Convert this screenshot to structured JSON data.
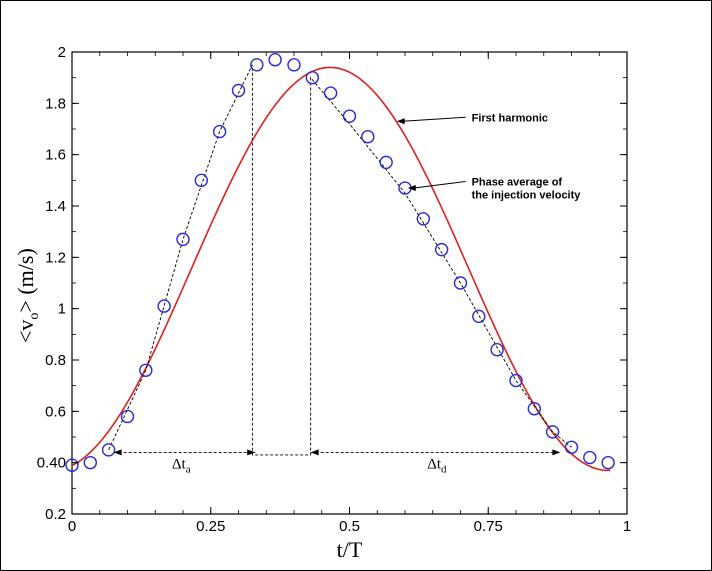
{
  "chart_data": {
    "type": "line",
    "xlabel": "t/T",
    "ylabel": "<v",
    "ylabel_sub": "o",
    "ylabel_unit": "> (m/s)",
    "xlim": [
      0,
      1
    ],
    "ylim": [
      0.2,
      2
    ],
    "x_ticks": [
      0,
      0.25,
      0.5,
      0.75,
      1
    ],
    "x_tick_labels": [
      "0",
      "0.25",
      "0.5",
      "0.75",
      "1"
    ],
    "y_ticks": [
      0.2,
      0.4,
      0.6,
      0.8,
      1.0,
      1.2,
      1.4,
      1.6,
      1.8,
      2.0
    ],
    "y_tick_labels": [
      "0.2",
      "0.40",
      "0.6",
      "0.8",
      "1",
      "1.2",
      "1.4",
      "1.6",
      "1.8",
      "2"
    ],
    "grid": false,
    "colors": {
      "harmonic": "#e0201e",
      "markers": "#2a2ad8",
      "dashed": "#000000"
    },
    "series": [
      {
        "name": "Phase average of the injection velocity",
        "kind": "markers-circle",
        "x": [
          0.0,
          0.033,
          0.066,
          0.1,
          0.133,
          0.166,
          0.2,
          0.233,
          0.266,
          0.3,
          0.333,
          0.366,
          0.4,
          0.433,
          0.466,
          0.5,
          0.533,
          0.566,
          0.6,
          0.633,
          0.666,
          0.7,
          0.733,
          0.766,
          0.8,
          0.833,
          0.866,
          0.9,
          0.933,
          0.966
        ],
        "y": [
          0.39,
          0.4,
          0.45,
          0.58,
          0.76,
          1.01,
          1.27,
          1.5,
          1.69,
          1.85,
          1.95,
          1.97,
          1.95,
          1.9,
          1.84,
          1.75,
          1.67,
          1.57,
          1.47,
          1.35,
          1.23,
          1.1,
          0.97,
          0.84,
          0.72,
          0.61,
          0.52,
          0.46,
          0.42,
          0.4
        ]
      },
      {
        "name": "First harmonic",
        "kind": "line",
        "mean": 1.155,
        "amplitude": 0.785,
        "peak_at": 0.465
      }
    ],
    "dashed_fit": {
      "x": [
        0.066,
        0.133,
        0.2,
        0.266,
        0.325,
        0.325,
        0.43,
        0.43,
        0.5,
        0.6,
        0.7,
        0.8,
        0.866,
        0.9
      ],
      "y": [
        0.45,
        0.76,
        1.27,
        1.69,
        1.95,
        0.43,
        0.43,
        1.9,
        1.72,
        1.45,
        1.1,
        0.72,
        0.52,
        0.46
      ]
    },
    "intervals": [
      {
        "label": "Δt",
        "sub": "a",
        "x_start": 0.075,
        "x_end": 0.33,
        "y": 0.44,
        "label_x": 0.18,
        "label_y": 0.3
      },
      {
        "label": "Δt",
        "sub": "d",
        "x_start": 0.43,
        "x_end": 0.88,
        "y": 0.44,
        "label_x": 0.64,
        "label_y": 0.3
      }
    ],
    "annotations": [
      {
        "text": [
          "First harmonic"
        ],
        "text_x": 0.72,
        "text_y": 1.73,
        "arrow_to_x": 0.585,
        "arrow_to_y": 1.73
      },
      {
        "text": [
          "Phase average of",
          "the injection velocity"
        ],
        "text_x": 0.72,
        "text_y": 1.48,
        "arrow_to_x": 0.605,
        "arrow_to_y": 1.47
      }
    ]
  }
}
